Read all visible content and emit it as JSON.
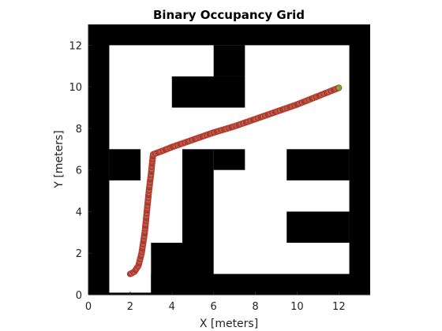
{
  "chart_data": {
    "type": "scatter",
    "title": "Binary Occupancy Grid",
    "xlabel": "X [meters]",
    "ylabel": "Y [meters]",
    "xlim": [
      0,
      13.5
    ],
    "ylim": [
      0,
      13
    ],
    "xticks": [
      "0",
      "2",
      "4",
      "6",
      "8",
      "10",
      "12"
    ],
    "xtick_values": [
      0,
      2,
      4,
      6,
      8,
      10,
      12
    ],
    "yticks": [
      "0",
      "2",
      "4",
      "6",
      "8",
      "10",
      "12"
    ],
    "ytick_values": [
      0,
      2,
      4,
      6,
      8,
      10,
      12
    ],
    "grid": false,
    "legend": "none",
    "colors": {
      "occupied": "#000000",
      "free": "#ffffff",
      "marker_edge": "#c0392b",
      "marker_palette": [
        "#0072BD",
        "#D95319",
        "#EDB120",
        "#7E2F8E",
        "#77AC30",
        "#4DBEEE",
        "#A2142F"
      ]
    },
    "occupied_cells": [
      [
        0,
        0,
        1,
        13
      ],
      [
        12.5,
        0,
        1,
        13
      ],
      [
        0,
        12,
        13.5,
        1
      ],
      [
        0,
        0,
        13.5,
        0.1
      ],
      [
        3,
        0,
        10.5,
        1
      ],
      [
        1,
        5.5,
        1.5,
        1.5
      ],
      [
        3,
        0,
        1.5,
        2.5
      ],
      [
        4.5,
        0,
        1.5,
        7
      ],
      [
        6,
        6,
        1.5,
        1
      ],
      [
        4,
        9,
        3.5,
        1.5
      ],
      [
        6,
        10.5,
        1.5,
        1.5
      ],
      [
        9.5,
        5.5,
        3,
        1.5
      ],
      [
        9.5,
        2.5,
        3,
        1.5
      ]
    ],
    "path": {
      "name": "",
      "x": [
        2.0,
        2.2,
        2.4,
        2.55,
        2.7,
        2.8,
        2.9,
        3.0,
        3.05,
        3.1,
        3.5,
        4.0,
        5.0,
        6.0,
        7.0,
        8.0,
        9.0,
        10.0,
        11.0,
        12.0
      ],
      "y": [
        1.0,
        1.1,
        1.4,
        2.0,
        3.0,
        4.0,
        5.0,
        5.8,
        6.3,
        6.75,
        6.9,
        7.1,
        7.45,
        7.8,
        8.1,
        8.45,
        8.8,
        9.15,
        9.55,
        9.95
      ]
    }
  }
}
